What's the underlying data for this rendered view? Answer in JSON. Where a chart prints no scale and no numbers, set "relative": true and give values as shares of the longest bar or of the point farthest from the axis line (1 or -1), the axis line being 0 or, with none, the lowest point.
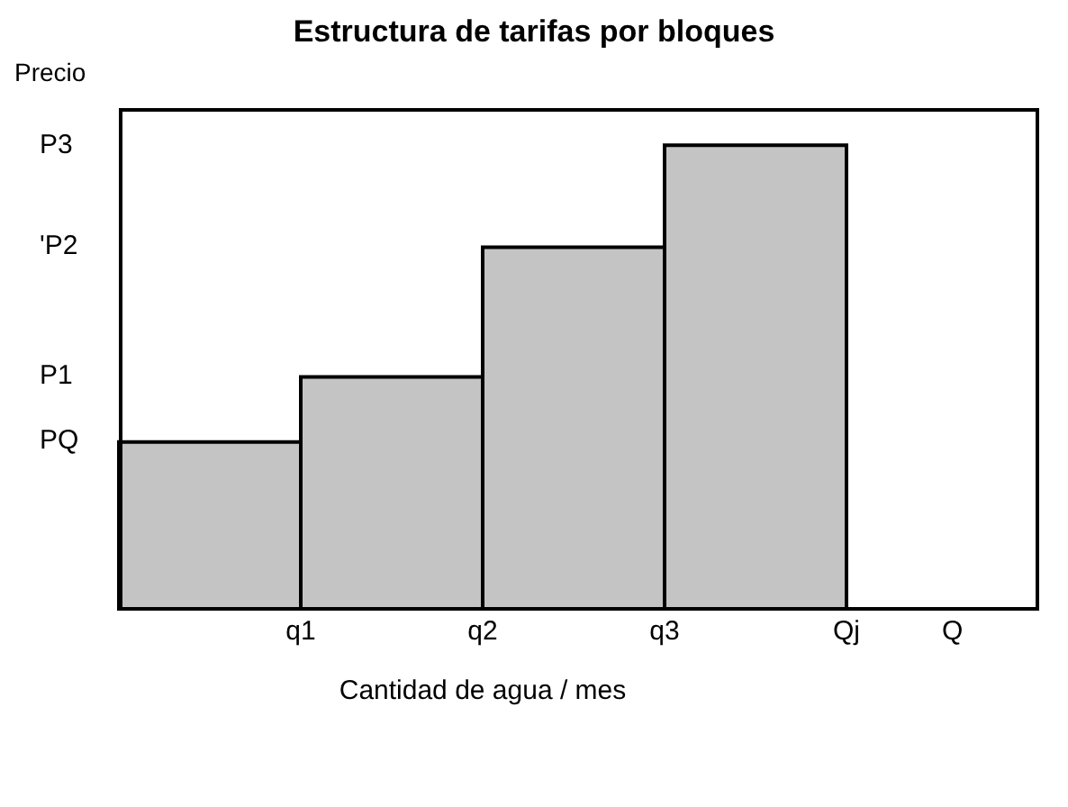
{
  "chart_data": {
    "type": "bar",
    "title": "Estructura de tarifas por bloques",
    "xlabel": "Cantidad de agua / mes",
    "ylabel": "Precio",
    "relative": true,
    "categories": [
      null,
      null,
      null,
      null
    ],
    "values": [
      0.36,
      0.5,
      0.78,
      1
    ],
    "color": "#c4c4c4",
    "annotations": [
      "PQ",
      "P1",
      "'P2",
      "P3",
      "q1",
      "q2",
      "q3",
      "Qj",
      "Q"
    ],
    "grid": false,
    "legend": false
  }
}
